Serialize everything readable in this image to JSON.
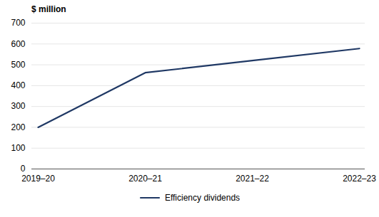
{
  "chart_data": {
    "type": "line",
    "ylabel": "$ million",
    "categories": [
      "2019–20",
      "2020–21",
      "2021–22",
      "2022–23"
    ],
    "series": [
      {
        "name": "Efficiency dividends",
        "color": "#1F3864",
        "values": [
          200,
          462,
          520,
          578
        ]
      }
    ],
    "ylim": [
      0,
      700
    ],
    "yticks": [
      0,
      100,
      200,
      300,
      400,
      500,
      600,
      700
    ],
    "grid": true,
    "legend": "bottom"
  }
}
